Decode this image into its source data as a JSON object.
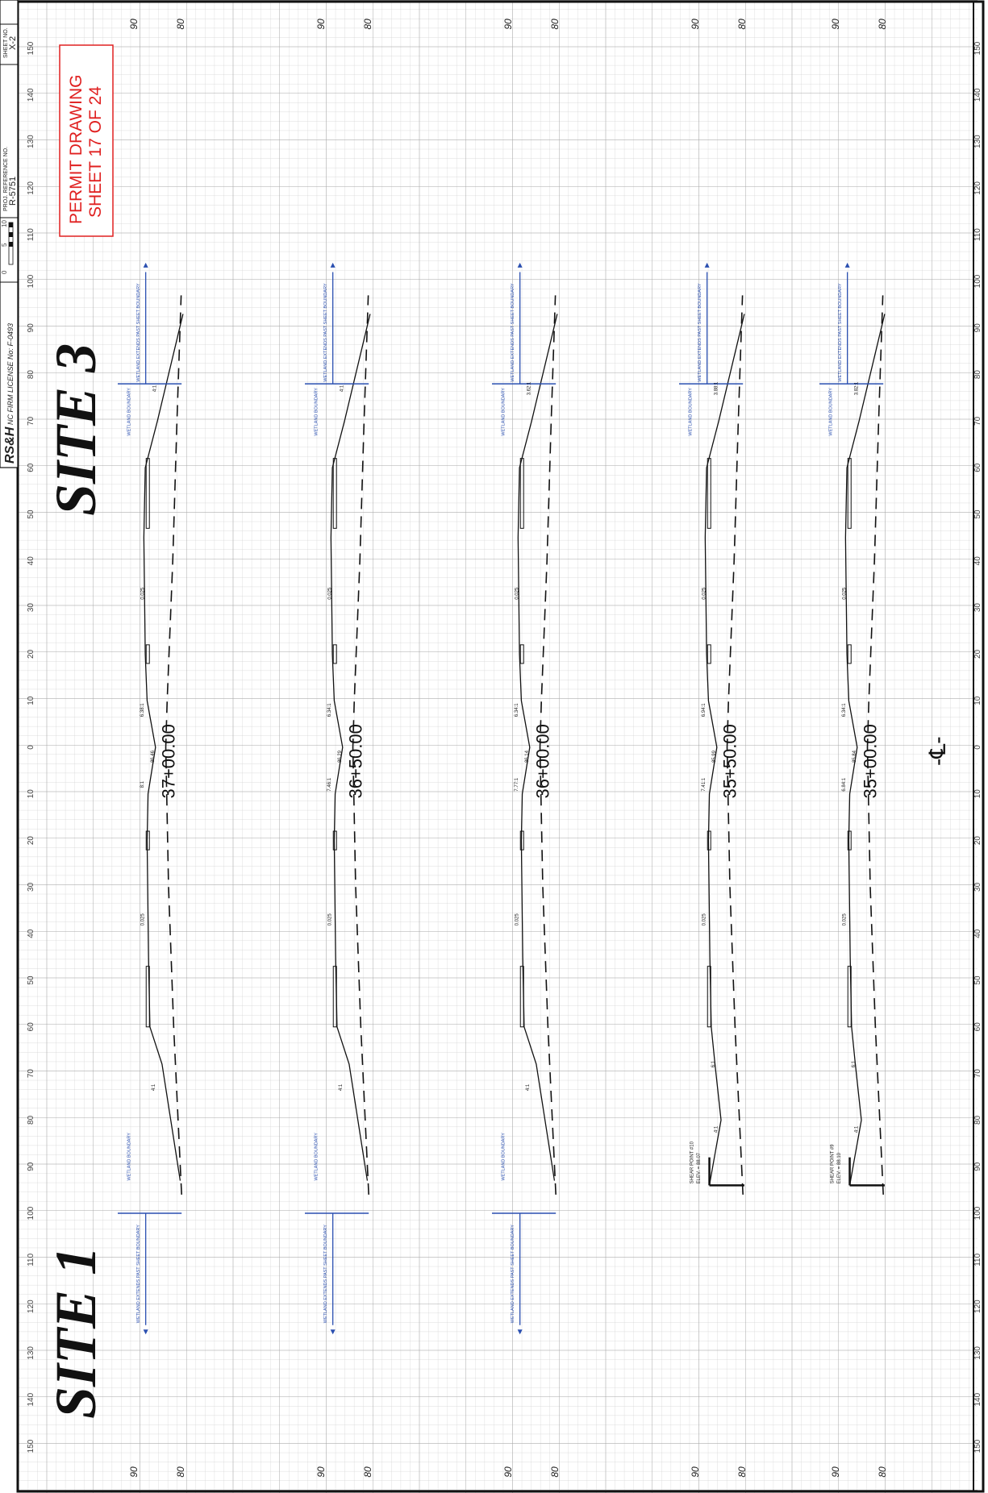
{
  "title_block": {
    "firm_logo": "RS&H",
    "firm_license": "NC FIRM LICENSE No: F-0493",
    "bar_scale_labels": [
      "0",
      "5",
      "10"
    ],
    "project_reference_label": "PROJ. REFERENCE NO.",
    "project_reference": "R-5751",
    "sheet_no_label": "SHEET NO.",
    "sheet_no": "X-2"
  },
  "site_labels": {
    "left": "SITE 1",
    "right": "SITE 3"
  },
  "permit_note": {
    "line1": "PERMIT DRAWING",
    "line2": "SHEET 17 OF 24"
  },
  "offset_scale": {
    "labels": [
      "150",
      "140",
      "130",
      "120",
      "110",
      "100",
      "90",
      "80",
      "70",
      "60",
      "50",
      "40",
      "30",
      "20",
      "10",
      "0",
      "10",
      "20",
      "30",
      "40",
      "50",
      "60",
      "70",
      "80",
      "90",
      "100",
      "110",
      "120",
      "130",
      "140",
      "150"
    ]
  },
  "elevation_labels": {
    "upper": "90",
    "lower": "80"
  },
  "centerline_symbol": "-℄-",
  "sections": [
    {
      "station": "37+00.00",
      "labels": {
        "wetland_left": "WETLAND BOUNDARY",
        "wetland_left_note": "WETLAND EXTENDS PAST SHEET BOUNDARY",
        "wetland_right": "WETLAND BOUNDARY",
        "wetland_right_note": "WETLAND EXTENDS PAST SHEET BOUNDARY",
        "slope_left": "4:1",
        "shoulder_left": "0.025",
        "lane_left": "8:1",
        "center_elev": "86.46",
        "lane_right": "6.38:1",
        "shoulder_right": "0.025",
        "slope_right": "4:1"
      }
    },
    {
      "station": "36+50.00",
      "labels": {
        "wetland_left": "WETLAND BOUNDARY",
        "wetland_left_note": "WETLAND EXTENDS PAST SHEET BOUNDARY",
        "wetland_right": "WETLAND BOUNDARY",
        "wetland_right_note": "WETLAND EXTENDS PAST SHEET BOUNDARY",
        "slope_left": "4:1",
        "shoulder_left": "0.025",
        "lane_left": "7.46:1",
        "center_elev": "86.29",
        "lane_right": "6.34:1",
        "shoulder_right": "0.025",
        "slope_right": "4:1"
      }
    },
    {
      "station": "36+00.00",
      "labels": {
        "wetland_left": "WETLAND BOUNDARY",
        "wetland_left_note": "WETLAND EXTENDS PAST SHEET BOUNDARY",
        "wetland_right": "WETLAND BOUNDARY",
        "wetland_right_note": "WETLAND EXTENDS PAST SHEET BOUNDARY",
        "slope_left": "4:1",
        "shoulder_left": "0.025",
        "lane_left": "7.77:1",
        "center_elev": "86.14",
        "lane_right": "6.34:1",
        "shoulder_right": "0.025",
        "slope_right": "3.62:1"
      }
    },
    {
      "station": "35+50.00",
      "labels": {
        "shear_point": "SHEAR POINT #10",
        "shear_elev": "ELEV. = 88.07",
        "slope_far": "4:1",
        "slope_left": "6:1",
        "shoulder_left": "0.025",
        "lane_left": "7.41:1",
        "center_elev": "85.99",
        "lane_right": "6.94:1",
        "shoulder_right": "0.025",
        "slope_right": "3.88:1",
        "wetland_right": "WETLAND BOUNDARY",
        "wetland_right_note": "WETLAND EXTENDS PAST SHEET BOUNDARY"
      }
    },
    {
      "station": "35+00.00",
      "labels": {
        "shear_point": "SHEAR POINT #9",
        "shear_elev": "ELEV. = 88.10",
        "slope_far": "4:1",
        "slope_left": "6:1",
        "shoulder_left": "0.025",
        "lane_left": "6.84:1",
        "center_elev": "85.84",
        "lane_right": "6.34:1",
        "shoulder_right": "0.025",
        "slope_right": "3.82:1",
        "wetland_right": "WETLAND BOUNDARY",
        "wetland_right_note": "WETLAND EXTENDS PAST SHEET BOUNDARY"
      }
    }
  ],
  "colors": {
    "grid_minor": "#d2d2d2",
    "grid_major": "#a8a8a8",
    "ink": "#111111",
    "wetland": "#2a4fb0",
    "permit": "#e02020"
  }
}
